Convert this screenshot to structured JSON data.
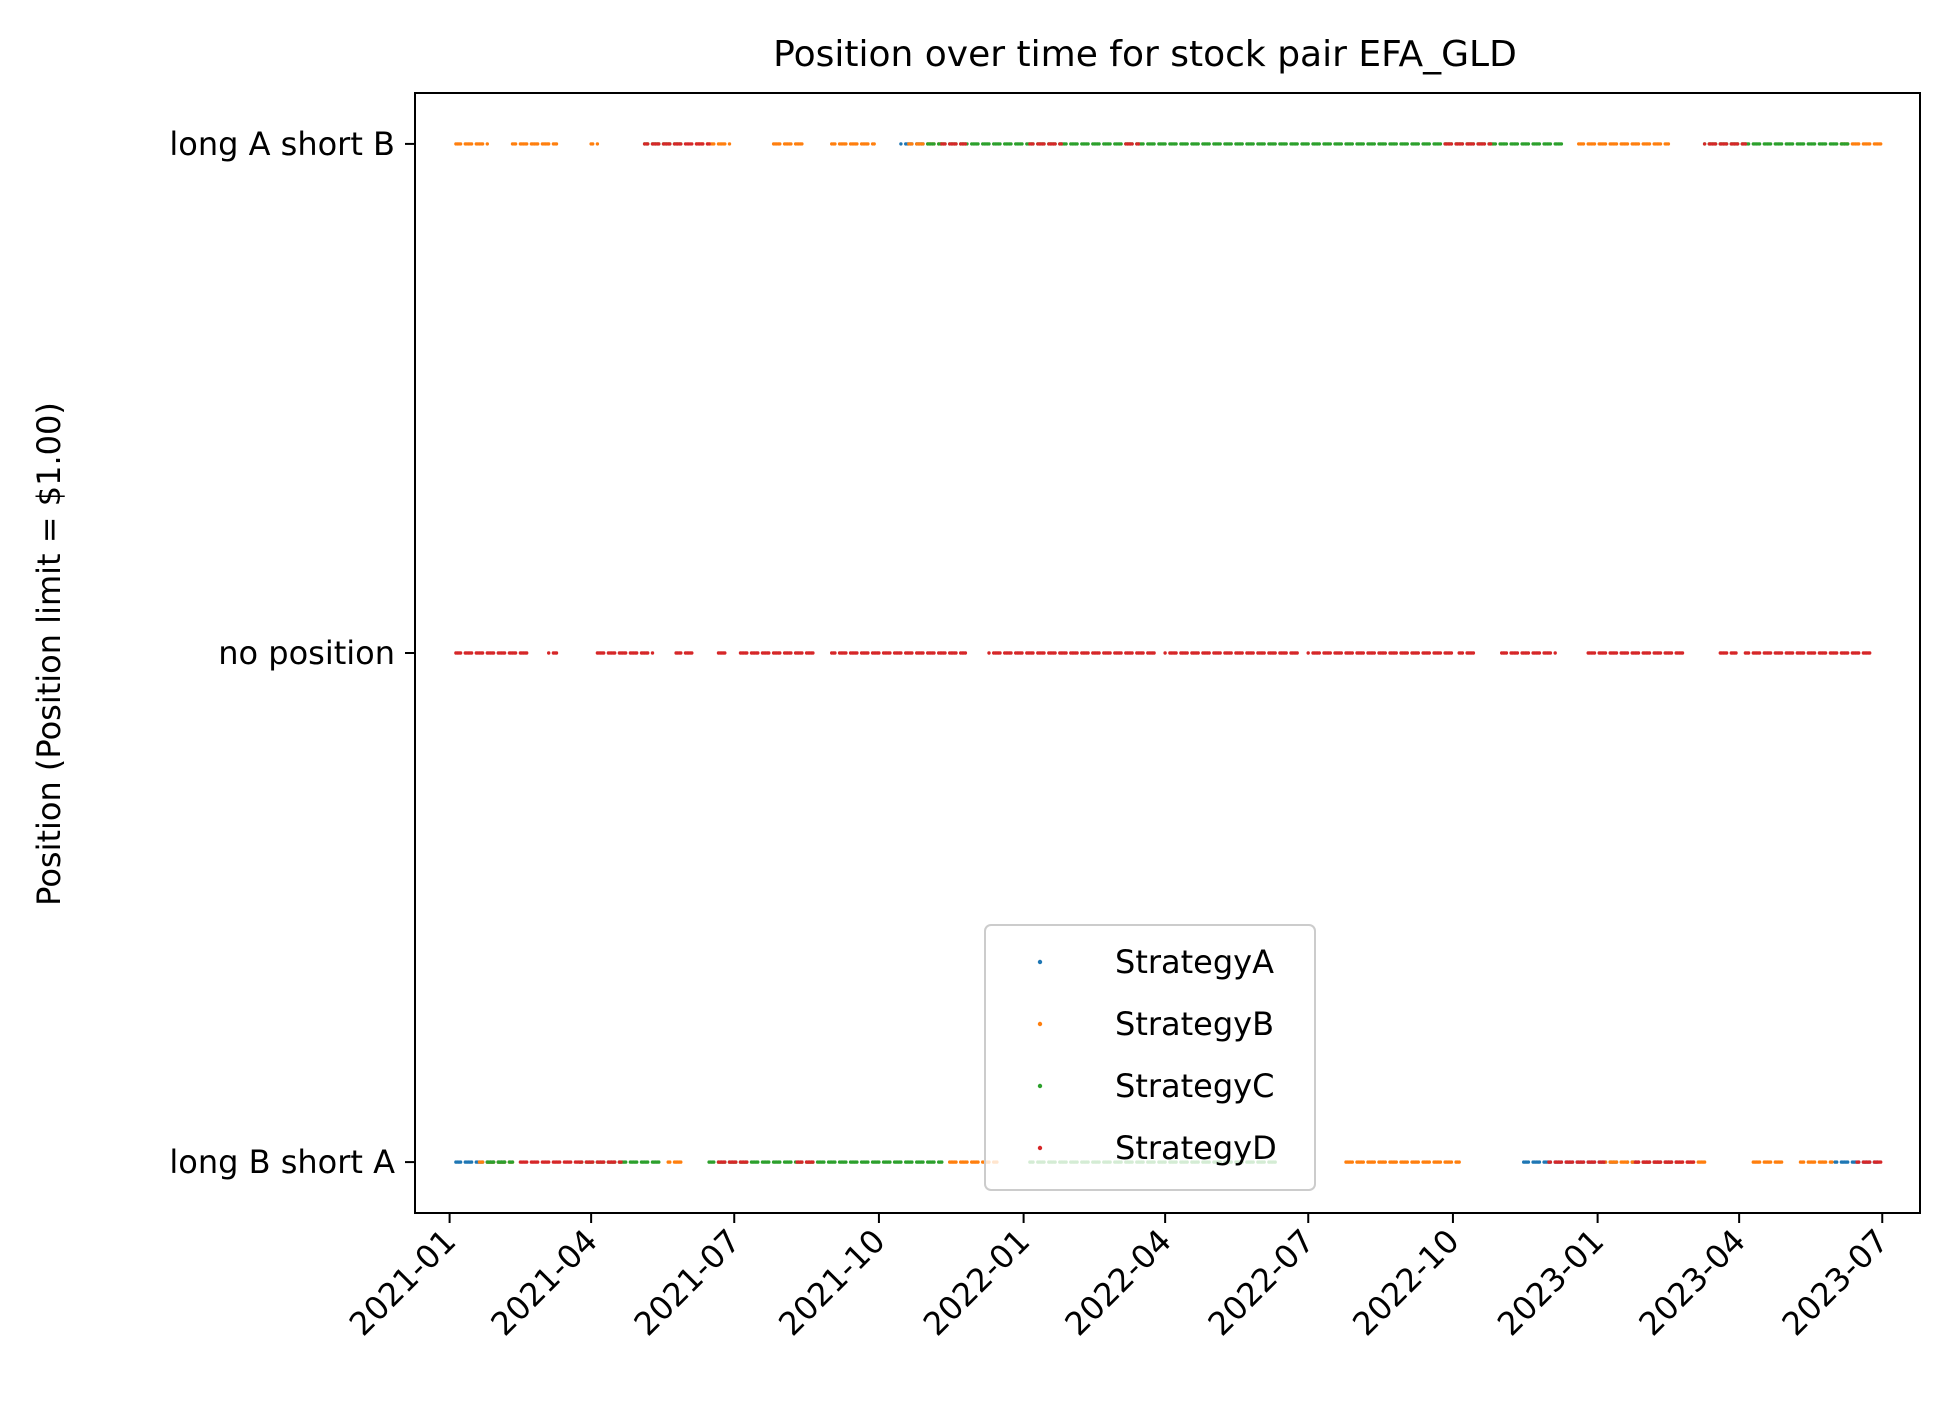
{
  "chart_data": {
    "type": "scatter",
    "title": "Position over time for stock pair EFA_GLD",
    "xlabel": "",
    "ylabel": "Position (Position limit = $1.00)",
    "x_ticks": [
      "2021-01",
      "2021-04",
      "2021-07",
      "2021-10",
      "2022-01",
      "2022-04",
      "2022-07",
      "2022-10",
      "2023-01",
      "2023-04",
      "2023-07"
    ],
    "xlim": [
      "2020-12-10",
      "2023-07-25"
    ],
    "y_categories": [
      "long B short A",
      "no position",
      "long A short B"
    ],
    "y_values": {
      "long B short A": -1,
      "no position": 0,
      "long A short B": 1
    },
    "ylim": [
      -1.1,
      1.1
    ],
    "grid": false,
    "legend_position": "lower center",
    "series": [
      {
        "name": "StrategyA",
        "color": "#1f77b4",
        "segments": [
          {
            "y": 1,
            "ranges": [
              [
                "2021-10-15",
                "2021-10-31"
              ]
            ]
          },
          {
            "y": -1,
            "ranges": [
              [
                "2021-01-05",
                "2021-02-05"
              ],
              [
                "2022-11-15",
                "2023-01-15"
              ],
              [
                "2023-01-20",
                "2023-02-20"
              ],
              [
                "2023-06-01",
                "2023-06-28"
              ]
            ]
          }
        ]
      },
      {
        "name": "StrategyB",
        "color": "#ff7f0e",
        "segments": [
          {
            "y": 1,
            "ranges": [
              [
                "2021-01-05",
                "2021-01-25"
              ],
              [
                "2021-02-10",
                "2021-03-10"
              ],
              [
                "2021-04-01",
                "2021-04-05"
              ],
              [
                "2021-06-05",
                "2021-06-28"
              ],
              [
                "2021-07-25",
                "2021-08-15"
              ],
              [
                "2021-09-01",
                "2021-09-28"
              ],
              [
                "2021-10-20",
                "2021-11-10"
              ],
              [
                "2022-12-20",
                "2023-02-15"
              ],
              [
                "2023-06-05",
                "2023-06-30"
              ]
            ]
          },
          {
            "y": -1,
            "ranges": [
              [
                "2021-01-20",
                "2021-02-10"
              ],
              [
                "2021-05-20",
                "2021-05-30"
              ],
              [
                "2021-11-15",
                "2021-12-15"
              ],
              [
                "2022-07-25",
                "2022-10-05"
              ],
              [
                "2023-01-05",
                "2023-03-10"
              ],
              [
                "2023-04-10",
                "2023-04-30"
              ],
              [
                "2023-05-10",
                "2023-05-30"
              ]
            ]
          }
        ]
      },
      {
        "name": "StrategyC",
        "color": "#2ca02c",
        "segments": [
          {
            "y": 1,
            "ranges": [
              [
                "2021-05-05",
                "2021-05-30"
              ],
              [
                "2021-11-01",
                "2022-12-10"
              ],
              [
                "2023-03-10",
                "2023-06-10"
              ]
            ]
          },
          {
            "y": -1,
            "ranges": [
              [
                "2021-01-25",
                "2021-02-10"
              ],
              [
                "2021-03-25",
                "2021-05-15"
              ],
              [
                "2021-06-15",
                "2021-11-10"
              ],
              [
                "2022-01-05",
                "2022-06-10"
              ]
            ]
          }
        ]
      },
      {
        "name": "StrategyD",
        "color": "#d62728",
        "segments": [
          {
            "y": 1,
            "ranges": [
              [
                "2021-05-05",
                "2021-06-15"
              ],
              [
                "2021-11-10",
                "2021-11-25"
              ],
              [
                "2022-01-05",
                "2022-01-25"
              ],
              [
                "2022-03-05",
                "2022-03-15"
              ],
              [
                "2022-09-25",
                "2022-10-25"
              ],
              [
                "2023-03-10",
                "2023-04-05"
              ]
            ]
          },
          {
            "y": 0,
            "ranges": [
              [
                "2021-01-05",
                "2021-02-20"
              ],
              [
                "2021-03-05",
                "2021-03-10"
              ],
              [
                "2021-04-05",
                "2021-05-10"
              ],
              [
                "2021-05-25",
                "2021-06-05"
              ],
              [
                "2021-06-20",
                "2021-06-25"
              ],
              [
                "2021-07-05",
                "2021-08-20"
              ],
              [
                "2021-09-01",
                "2021-11-25"
              ],
              [
                "2021-12-10",
                "2022-03-25"
              ],
              [
                "2022-04-01",
                "2022-06-25"
              ],
              [
                "2022-07-01",
                "2022-10-01"
              ],
              [
                "2022-10-05",
                "2022-10-15"
              ],
              [
                "2022-11-01",
                "2022-12-05"
              ],
              [
                "2022-12-25",
                "2023-02-25"
              ],
              [
                "2023-03-20",
                "2023-03-30"
              ],
              [
                "2023-04-05",
                "2023-06-25"
              ]
            ]
          },
          {
            "y": -1,
            "ranges": [
              [
                "2021-02-15",
                "2021-04-20"
              ],
              [
                "2021-06-20",
                "2021-07-10"
              ],
              [
                "2021-08-10",
                "2021-08-20"
              ],
              [
                "2022-12-01",
                "2023-01-05"
              ],
              [
                "2023-01-25",
                "2023-03-05"
              ],
              [
                "2023-06-15",
                "2023-06-30"
              ]
            ]
          }
        ]
      }
    ]
  }
}
